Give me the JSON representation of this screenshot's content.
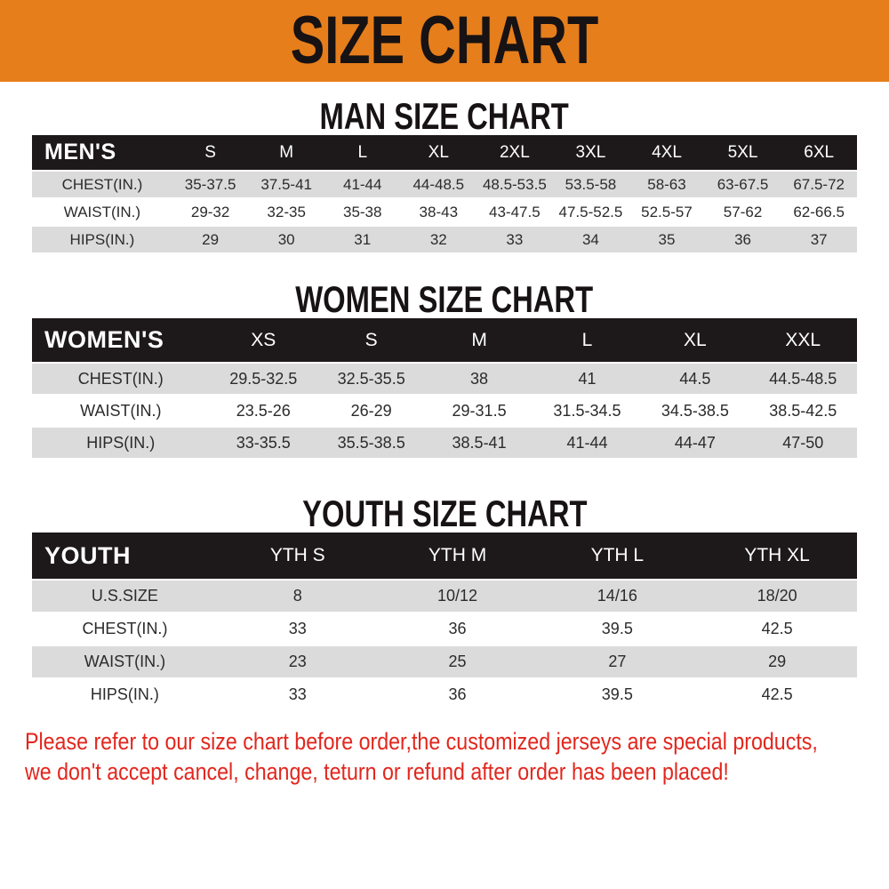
{
  "banner": {
    "title": "SIZE CHART"
  },
  "colors": {
    "banner_bg": "#E67E1C",
    "table_header_bg": "#1D191A",
    "row_stripe": "#DBDBDB",
    "footer_text": "#E2261D",
    "title_text": "#171213"
  },
  "sections": {
    "men": {
      "heading": "MAN SIZE CHART",
      "table": {
        "header": [
          "MEN'S",
          "S",
          "M",
          "L",
          "XL",
          "2XL",
          "3XL",
          "4XL",
          "5XL",
          "6XL"
        ],
        "rows": [
          [
            "CHEST(IN.)",
            "35-37.5",
            "37.5-41",
            "41-44",
            "44-48.5",
            "48.5-53.5",
            "53.5-58",
            "58-63",
            "63-67.5",
            "67.5-72"
          ],
          [
            "WAIST(IN.)",
            "29-32",
            "32-35",
            "35-38",
            "38-43",
            "43-47.5",
            "47.5-52.5",
            "52.5-57",
            "57-62",
            "62-66.5"
          ],
          [
            "HIPS(IN.)",
            "29",
            "30",
            "31",
            "32",
            "33",
            "34",
            "35",
            "36",
            "37"
          ]
        ]
      }
    },
    "women": {
      "heading": "WOMEN SIZE CHART",
      "table": {
        "header": [
          "WOMEN'S",
          "XS",
          "S",
          "M",
          "L",
          "XL",
          "XXL"
        ],
        "rows": [
          [
            "CHEST(IN.)",
            "29.5-32.5",
            "32.5-35.5",
            "38",
            "41",
            "44.5",
            "44.5-48.5"
          ],
          [
            "WAIST(IN.)",
            "23.5-26",
            "26-29",
            "29-31.5",
            "31.5-34.5",
            "34.5-38.5",
            "38.5-42.5"
          ],
          [
            "HIPS(IN.)",
            "33-35.5",
            "35.5-38.5",
            "38.5-41",
            "41-44",
            "44-47",
            "47-50"
          ]
        ]
      }
    },
    "youth": {
      "heading": "YOUTH SIZE CHART",
      "table": {
        "header": [
          "YOUTH",
          "YTH S",
          "YTH M",
          "YTH L",
          "YTH XL"
        ],
        "rows": [
          [
            "U.S.SIZE",
            "8",
            "10/12",
            "14/16",
            "18/20"
          ],
          [
            "CHEST(IN.)",
            "33",
            "36",
            "39.5",
            "42.5"
          ],
          [
            "WAIST(IN.)",
            "23",
            "25",
            "27",
            "29"
          ],
          [
            "HIPS(IN.)",
            "33",
            "36",
            "39.5",
            "42.5"
          ]
        ]
      }
    }
  },
  "footer": {
    "line1": "Please refer to our size chart before order,the customized jerseys are special products,",
    "line2": "we don't accept cancel, change, teturn or refund after order has been placed!"
  }
}
